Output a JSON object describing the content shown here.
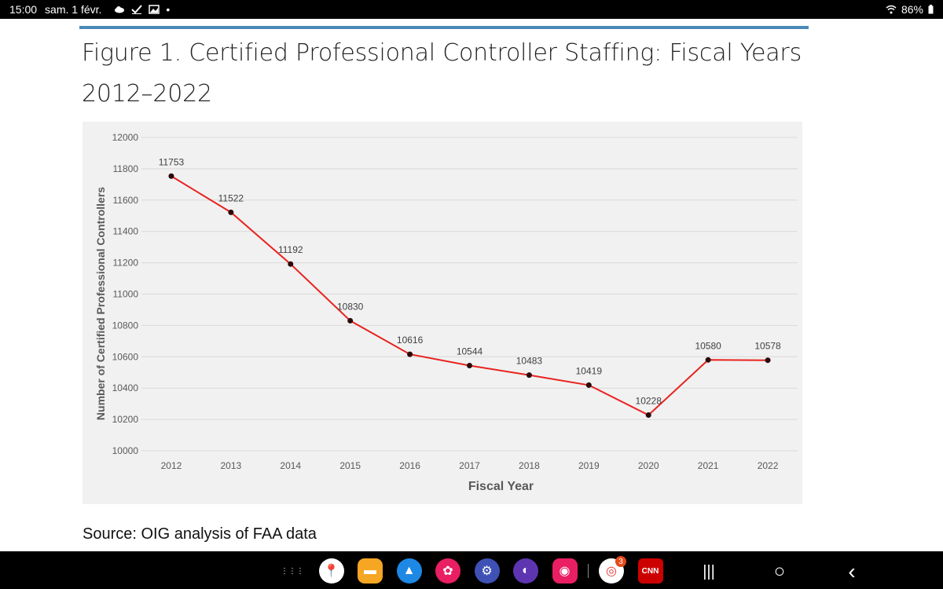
{
  "status_bar": {
    "time": "15:00",
    "date": "sam. 1 févr.",
    "battery": "86%"
  },
  "figure": {
    "title": "Figure 1. Certified Professional Controller Staffing: Fiscal Years 2012–2022",
    "source": "Source: OIG analysis of FAA data"
  },
  "chart_data": {
    "type": "line",
    "categories": [
      "2012",
      "2013",
      "2014",
      "2015",
      "2016",
      "2017",
      "2018",
      "2019",
      "2020",
      "2021",
      "2022"
    ],
    "values": [
      11753,
      11522,
      11192,
      10830,
      10616,
      10544,
      10483,
      10419,
      10228,
      10580,
      10578
    ],
    "xlabel": "Fiscal Year",
    "ylabel": "Number of Certified Professional Controllers",
    "ylim": [
      10000,
      12000
    ],
    "yticks": [
      10000,
      10200,
      10400,
      10600,
      10800,
      11000,
      11200,
      11400,
      11600,
      11800,
      12000
    ],
    "line_color": "#e8231f",
    "marker_color": "#2a0a0a",
    "grid": true
  },
  "nav_bar": {
    "apps": [
      {
        "name": "app-drawer-icon",
        "color": "#000000",
        "glyph": "⋮⋮⋮"
      },
      {
        "name": "maps-icon",
        "color": "#ffffff",
        "glyph": "📍"
      },
      {
        "name": "files-icon",
        "color": "#f5a623",
        "glyph": "▬"
      },
      {
        "name": "navigation-app-icon",
        "color": "#1e88e5",
        "glyph": "▲"
      },
      {
        "name": "flower-app-icon",
        "color": "#e91e63",
        "glyph": "✿"
      },
      {
        "name": "settings-icon",
        "color": "#3f51b5",
        "glyph": "⚙"
      },
      {
        "name": "browser-icon",
        "color": "#5e35b1",
        "glyph": "◐"
      },
      {
        "name": "camera-icon",
        "color": "#e91e63",
        "glyph": "◉"
      },
      {
        "name": "chrome-icon",
        "color": "#ffffff",
        "glyph": "◎",
        "badge": "3"
      },
      {
        "name": "cnn-icon",
        "color": "#cc0000",
        "glyph": "CNN"
      }
    ],
    "buttons": [
      "|||",
      "○",
      "‹"
    ]
  }
}
